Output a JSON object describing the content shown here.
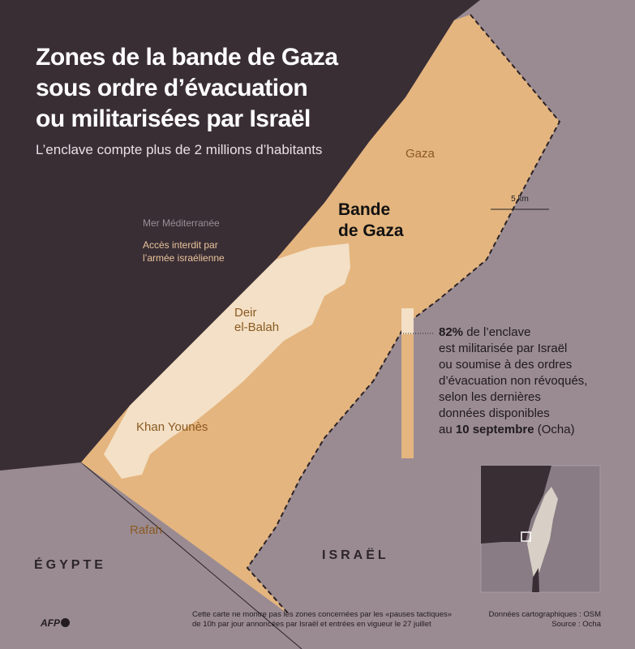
{
  "title_lines": [
    "Zones de la bande de Gaza",
    "sous ordre d’évacuation",
    "ou militarisées par Israël"
  ],
  "subtitle": "L’enclave compte plus de 2 millions d’habitants",
  "labels": {
    "sea": "Mer Méditerranée",
    "legend_zone_lines": [
      "Accès interdit par",
      "l’armée israélienne"
    ],
    "strip_lines": [
      "Bande",
      "de Gaza"
    ],
    "scale": "5 km",
    "egypt": "ÉGYPTE",
    "israel": "ISRAËL",
    "cities": {
      "gaza": "Gaza",
      "deir1": "Deir",
      "deir2": "el-Balah",
      "khan": "Khan Younès",
      "rafah": "Rafah"
    }
  },
  "stat": {
    "percent_military": 82,
    "l1_bold": "82%",
    "l1_rest": " de l’enclave",
    "l2": "est militarisée par Israël",
    "l3": "ou soumise à des ordres",
    "l4": "d’évacuation non révoqués,",
    "l5": "selon les dernières",
    "l6": "données disponibles",
    "l7_pre": "au ",
    "l7_bold": "10 septembre",
    "l7_post": " (Ocha)"
  },
  "footnote_lines": [
    "Cette carte ne montre pas les zones concernées par les «pauses tactiques»",
    "de 10h par jour annoncées par Israël et entrées en vigueur le 27 juillet"
  ],
  "source_lines": [
    "Données cartographiques : OSM",
    "Source : Ocha"
  ],
  "logo": "AFP",
  "colors": {
    "sea": "#3a2e35",
    "land": "#9a8b92",
    "strip": "#e4b57e",
    "restricted": "#f3e0c6",
    "city_text": "#8a5a22"
  }
}
